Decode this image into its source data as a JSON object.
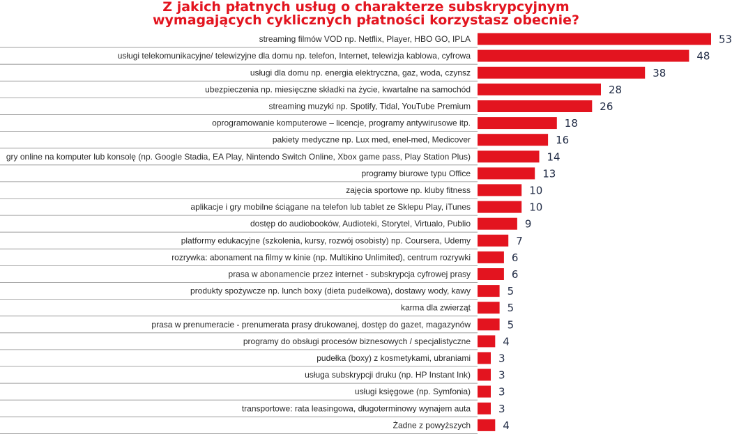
{
  "title": "Z jakich płatnych usług o charakterze subskrypcyjnym",
  "subtitle": "wymagających cyklicznych płatności korzystasz obecnie?",
  "colors": {
    "bar": "#e3141f",
    "title": "#e3141f",
    "label": "#2a2a2a",
    "value": "#1f2a44",
    "divider": "#8c8c8c"
  },
  "chart_data": {
    "type": "bar",
    "orientation": "horizontal",
    "title": "Z jakich płatnych usług o charakterze subskrypcyjnym wymagających cyklicznych płatności korzystasz obecnie?",
    "xlabel": "",
    "ylabel": "",
    "xlim": [
      0,
      53
    ],
    "grid": false,
    "legend": "none",
    "categories": [
      "streaming filmów VOD np. Netflix, Player, HBO GO, IPLA",
      "usługi telekomunikacyjne/ telewizyjne  dla domu  np. telefon, Internet, telewizja kablowa, cyfrowa",
      "usługi dla domu np. energia elektryczna, gaz, woda, czynsz",
      "ubezpieczenia np. miesięczne składki na życie, kwartalne na samochód",
      "streaming muzyki np. Spotify, Tidal, YouTube Premium",
      "oprogramowanie komputerowe – licencje, programy antywirusowe itp.",
      "pakiety medyczne np. Lux med, enel-med, Medicover",
      "gry online na komputer lub konsolę (np. Google Stadia, EA Play, Nintendo Switch Online, Xbox game pass, Play Station Plus)",
      "programy biurowe typu Office",
      "zajęcia sportowe np. kluby fitness",
      "aplikacje i gry mobilne ściągane na telefon lub tablet ze Sklepu Play, iTunes",
      "dostęp do audiobooków, Audioteki, Storytel, Virtualo, Publio",
      "platformy edukacyjne (szkolenia, kursy, rozwój osobisty) np. Coursera, Udemy",
      "rozrywka: abonament na filmy w kinie (np. Multikino Unlimited), centrum rozrywki",
      "prasa w abonamencie przez internet - subskrypcja cyfrowej prasy",
      "produkty spożywcze np. lunch boxy (dieta pudełkowa), dostawy wody, kawy",
      "karma dla zwierząt",
      "prasa w prenumeracie - prenumerata prasy drukowanej, dostęp do gazet, magazynów",
      "programy do obsługi procesów biznesowych / specjalistyczne",
      "pudełka (boxy) z kosmetykami, ubraniami",
      "usługa subskrypcji druku (np. HP Instant Ink)",
      "usługi księgowe (np. Symfonia)",
      "transportowe: rata leasingowa, długoterminowy wynajem auta",
      "Żadne z powyższych"
    ],
    "values": [
      53,
      48,
      38,
      28,
      26,
      18,
      16,
      14,
      13,
      10,
      10,
      9,
      7,
      6,
      6,
      5,
      5,
      5,
      4,
      3,
      3,
      3,
      3,
      4
    ]
  }
}
